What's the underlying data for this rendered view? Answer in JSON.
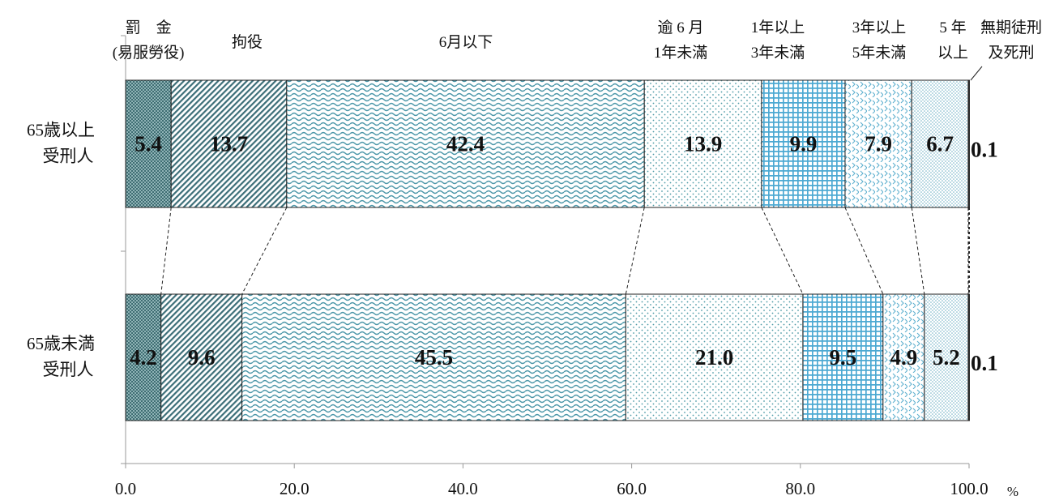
{
  "chart_data": {
    "type": "bar",
    "orientation": "horizontal",
    "stacked": true,
    "unit": "%",
    "xlim": [
      0,
      100
    ],
    "xticks": [
      "0.0",
      "20.0",
      "40.0",
      "60.0",
      "80.0",
      "100.0"
    ],
    "categories": [
      {
        "line1": "65歳以上",
        "line2": "受刑人"
      },
      {
        "line1": "65歳未満",
        "line2": "受刑人"
      }
    ],
    "series": [
      {
        "name_lines": [
          "罰　金",
          "(易服勞役)"
        ],
        "values": [
          5.4,
          4.2
        ],
        "color": "#7fa3a6"
      },
      {
        "name_lines": [
          "拘役"
        ],
        "values": [
          13.7,
          9.6
        ],
        "color": "#6c8c95"
      },
      {
        "name_lines": [
          "6月以下"
        ],
        "values": [
          42.4,
          45.5
        ],
        "color": "#6aa7b4"
      },
      {
        "name_lines": [
          "逾 6 月",
          "1年未滿"
        ],
        "values": [
          13.9,
          21.0
        ],
        "color": "#8cbcc4"
      },
      {
        "name_lines": [
          "1年以上",
          "3年未滿"
        ],
        "values": [
          9.9,
          9.5
        ],
        "color": "#7bbad2"
      },
      {
        "name_lines": [
          "3年以上",
          "5年未滿"
        ],
        "values": [
          7.9,
          4.9
        ],
        "color": "#8ec2d6"
      },
      {
        "name_lines": [
          "5 年",
          "以上"
        ],
        "values": [
          6.7,
          5.2
        ],
        "color": "#9fc7d3"
      },
      {
        "name_lines": [
          "無期徒刑",
          "及死刑"
        ],
        "values": [
          0.1,
          0.1
        ],
        "color": "#2f2f2f"
      }
    ],
    "data_labels": [
      [
        "5.4",
        "13.7",
        "42.4",
        "13.9",
        "9.9",
        "7.9",
        "6.7",
        "0.1"
      ],
      [
        "4.2",
        "9.6",
        "45.5",
        "21.0",
        "9.5",
        "4.9",
        "5.2",
        "0.1"
      ]
    ]
  }
}
